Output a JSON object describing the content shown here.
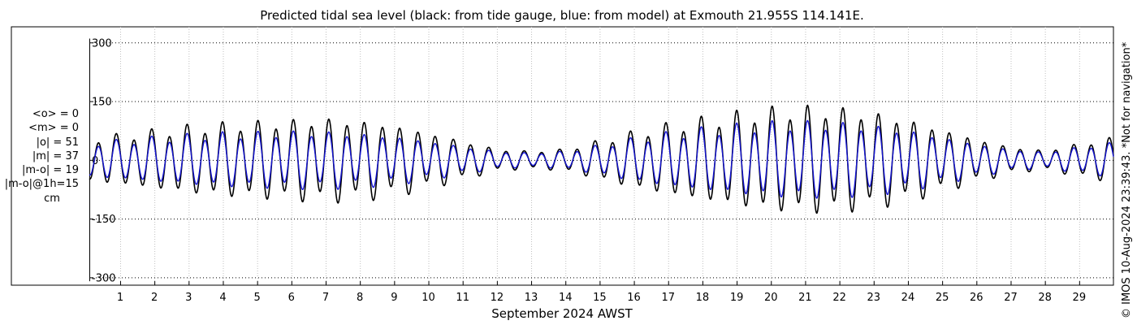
{
  "chart_data": {
    "type": "line",
    "title": "Predicted tidal sea level (black: from tide gauge, blue: from model) at Exmouth 21.955S 114.141E.",
    "xlabel": "September 2024 AWST",
    "ylabel": "cm",
    "xlim_days": [
      0.1,
      30.0
    ],
    "ylim": [
      -320,
      340
    ],
    "yticks": [
      300,
      150,
      0,
      -150,
      -300
    ],
    "ytick_labels": [
      "300",
      "150",
      "0",
      "-150",
      "-300"
    ],
    "xticks": [
      1,
      2,
      3,
      4,
      5,
      6,
      7,
      8,
      9,
      10,
      11,
      12,
      13,
      14,
      15,
      16,
      17,
      18,
      19,
      20,
      21,
      22,
      23,
      24,
      25,
      26,
      27,
      28,
      29
    ],
    "xtick_labels": [
      "1",
      "2",
      "3",
      "4",
      "5",
      "6",
      "7",
      "8",
      "9",
      "10",
      "11",
      "12",
      "13",
      "14",
      "15",
      "16",
      "17",
      "18",
      "19",
      "20",
      "21",
      "22",
      "23",
      "24",
      "25",
      "26",
      "27",
      "28",
      "29"
    ],
    "grid": true,
    "series": [
      {
        "name": "from tide gauge",
        "color": "#000000",
        "cycles_per_day": 1.932,
        "phase_at_day0": 1.8,
        "amplitude_day": [
          0,
          1,
          2,
          3,
          4,
          5,
          6,
          7,
          8,
          9,
          10,
          11,
          12,
          13,
          14,
          15,
          16,
          17,
          18,
          19,
          20,
          21,
          22,
          23,
          24,
          25,
          26,
          27,
          28,
          29,
          30
        ],
        "amplitude_cm": [
          50,
          58,
          68,
          78,
          84,
          88,
          92,
          96,
          92,
          82,
          65,
          45,
          25,
          20,
          25,
          45,
          65,
          82,
          95,
          108,
          118,
          122,
          120,
          110,
          95,
          72,
          50,
          30,
          22,
          38,
          52
        ]
      },
      {
        "name": "from model",
        "color": "#1414d2",
        "cycles_per_day": 1.932,
        "phase_at_day0": 1.8,
        "amplitude_day": [
          0,
          1,
          2,
          3,
          4,
          5,
          6,
          7,
          8,
          9,
          10,
          11,
          12,
          13,
          14,
          15,
          16,
          17,
          18,
          19,
          20,
          21,
          22,
          23,
          24,
          25,
          26,
          27,
          28,
          29,
          30
        ],
        "amplitude_cm": [
          40,
          45,
          52,
          58,
          62,
          64,
          66,
          66,
          62,
          56,
          45,
          32,
          20,
          16,
          20,
          34,
          50,
          62,
          72,
          80,
          86,
          88,
          86,
          80,
          70,
          54,
          38,
          24,
          18,
          30,
          40
        ]
      }
    ]
  },
  "stats": {
    "mean_o": "<o> = 0",
    "mean_m": "<m> = 0",
    "abs_o": "|o| = 51",
    "abs_m": "|m| = 37",
    "abs_diff": "|m-o| = 19",
    "abs_diff_1h": "|m-o|@1h=15",
    "unit": "cm"
  },
  "credit": "© IMOS 10-Aug-2024 23:39:43. *Not for navigation*",
  "colors": {
    "gauge": "#000000",
    "model": "#1414d2",
    "grid": "#c0c0c0"
  }
}
